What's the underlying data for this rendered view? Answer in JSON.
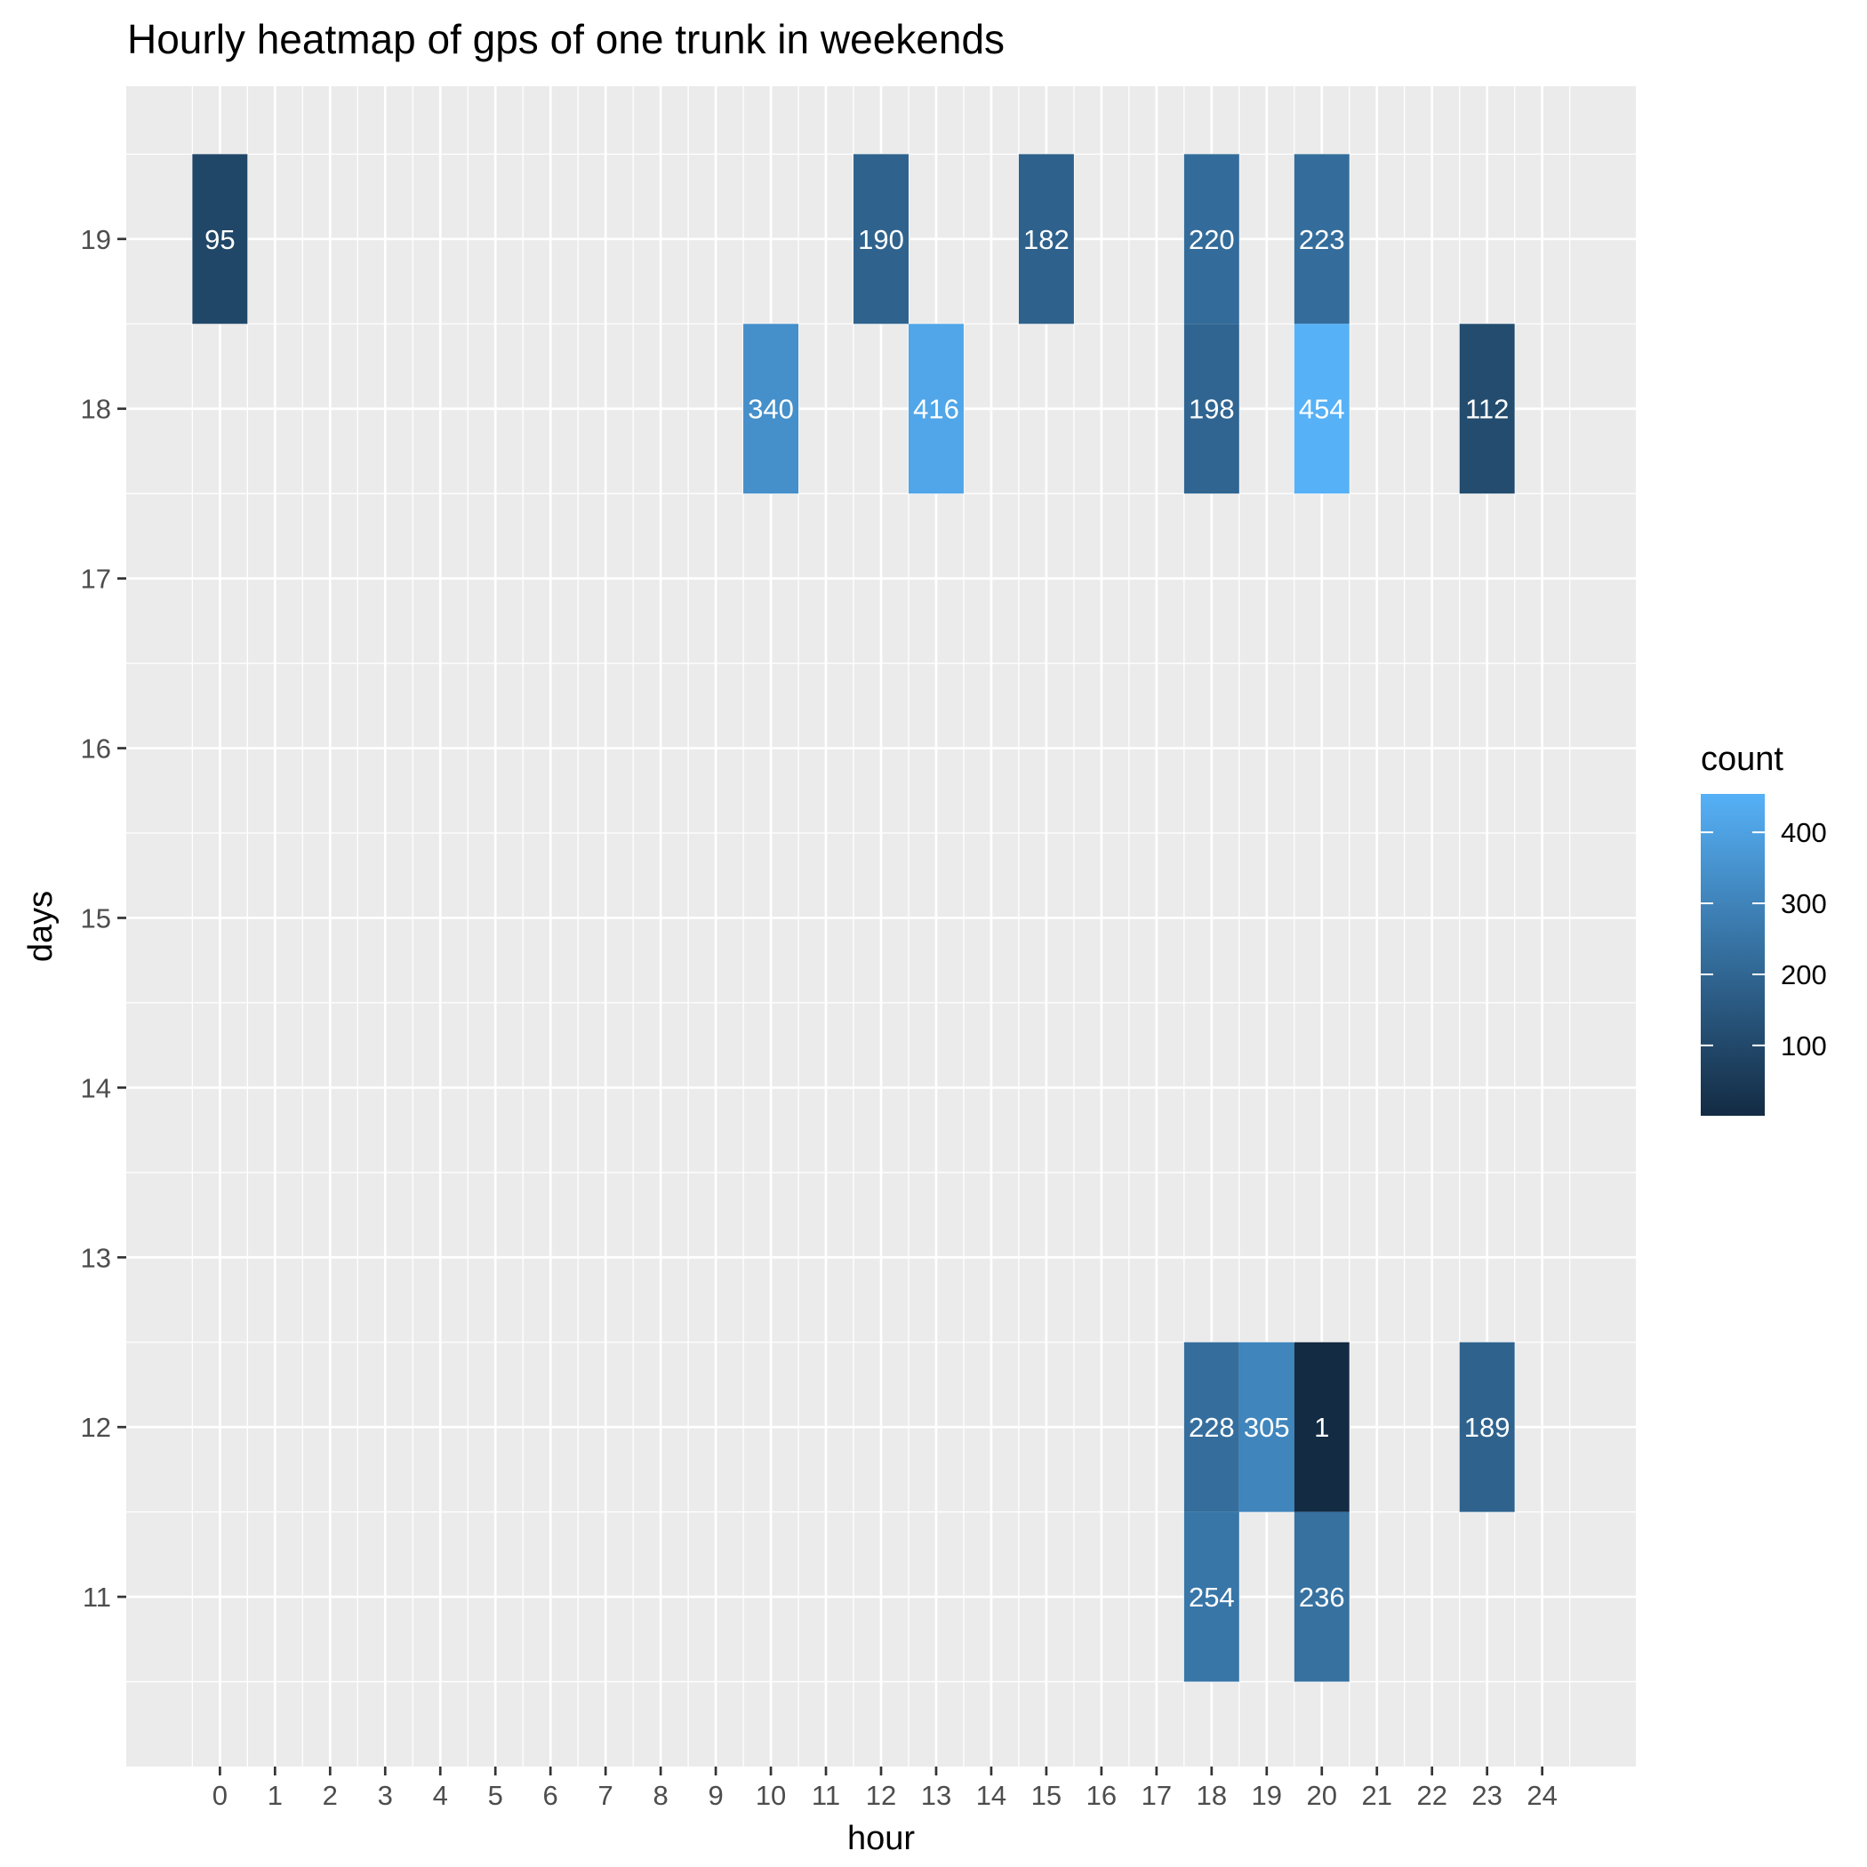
{
  "chart_data": {
    "type": "heatmap",
    "title": "Hourly heatmap of gps of one trunk in weekends",
    "xlabel": "hour",
    "ylabel": "days",
    "x_ticks": [
      "0",
      "1",
      "2",
      "3",
      "4",
      "5",
      "6",
      "7",
      "8",
      "9",
      "10",
      "11",
      "12",
      "13",
      "14",
      "15",
      "16",
      "17",
      "18",
      "19",
      "20",
      "21",
      "22",
      "23",
      "24"
    ],
    "y_ticks": [
      "11",
      "12",
      "13",
      "14",
      "15",
      "16",
      "17",
      "18",
      "19"
    ],
    "xlim": [
      -1.7,
      25.7
    ],
    "ylim": [
      10.0,
      19.9
    ],
    "grid": true,
    "legend": {
      "title": "count",
      "placement": "right",
      "ticks": [
        "100",
        "200",
        "300",
        "400"
      ],
      "min": 1,
      "max": 454,
      "color_low": "#132b43",
      "color_high": "#56b1f7"
    },
    "cells": [
      {
        "hour": 0,
        "day": 19,
        "count": 95
      },
      {
        "hour": 12,
        "day": 19,
        "count": 190
      },
      {
        "hour": 15,
        "day": 19,
        "count": 182
      },
      {
        "hour": 18,
        "day": 19,
        "count": 220
      },
      {
        "hour": 20,
        "day": 19,
        "count": 223
      },
      {
        "hour": 10,
        "day": 18,
        "count": 340
      },
      {
        "hour": 13,
        "day": 18,
        "count": 416
      },
      {
        "hour": 18,
        "day": 18,
        "count": 198
      },
      {
        "hour": 20,
        "day": 18,
        "count": 454
      },
      {
        "hour": 23,
        "day": 18,
        "count": 112
      },
      {
        "hour": 18,
        "day": 12,
        "count": 228
      },
      {
        "hour": 19,
        "day": 12,
        "count": 305
      },
      {
        "hour": 20,
        "day": 12,
        "count": 1
      },
      {
        "hour": 23,
        "day": 12,
        "count": 189
      },
      {
        "hour": 18,
        "day": 11,
        "count": 254
      },
      {
        "hour": 20,
        "day": 11,
        "count": 236
      }
    ]
  }
}
